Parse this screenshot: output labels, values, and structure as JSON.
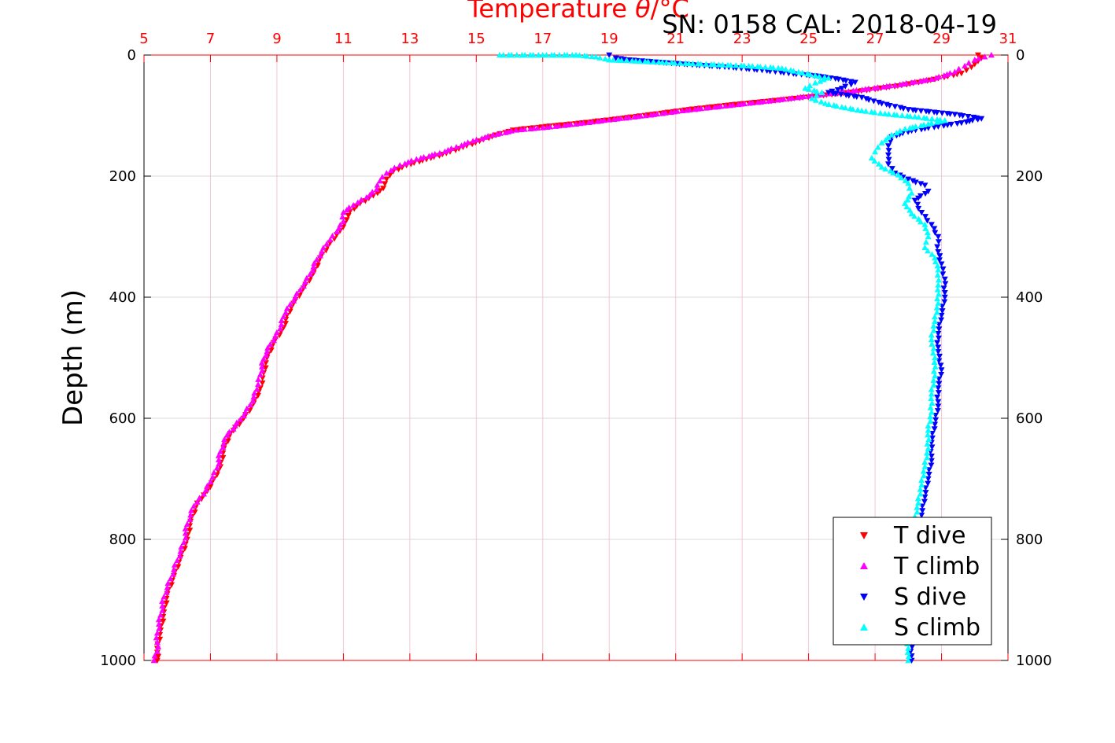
{
  "header": {
    "title_text": "Temperature",
    "title_symbol": "θ",
    "title_unit": "/°C",
    "info": "SN: 0158  CAL: 2018-04-19"
  },
  "colors": {
    "t_dive": "#ff0000",
    "t_climb": "#ff00ff",
    "s_dive": "#0000ff",
    "s_climb": "#00ffff",
    "temp_axis": "#ff0000",
    "grid": "#d9d9d9",
    "temp_grid": "#f4c7d2"
  },
  "chart_data": {
    "type": "scatter",
    "title": "Temperature θ/°C",
    "ylabel": "Depth (m)",
    "xlabel": "",
    "x_top_ticks": [
      "5",
      "7",
      "9",
      "11",
      "13",
      "15",
      "17",
      "19",
      "21",
      "23",
      "25",
      "27",
      "29",
      "31"
    ],
    "x_top_range": [
      5,
      31
    ],
    "y_ticks": [
      "0",
      "200",
      "400",
      "600",
      "800",
      "1000"
    ],
    "y_range": [
      0,
      1000
    ],
    "y_reversed": true,
    "grid": true,
    "legend_position": "bottom-right",
    "series": [
      {
        "name": "T dive",
        "marker": "triangle-down",
        "color": "#ff0000",
        "points": [
          [
            30.1,
            0
          ],
          [
            30.2,
            5
          ],
          [
            30.1,
            10
          ],
          [
            29.9,
            20
          ],
          [
            29.6,
            30
          ],
          [
            28.8,
            40
          ],
          [
            27.8,
            50
          ],
          [
            26.5,
            60
          ],
          [
            25.2,
            68
          ],
          [
            24.0,
            75
          ],
          [
            22.7,
            82
          ],
          [
            21.4,
            90
          ],
          [
            20.3,
            98
          ],
          [
            19.3,
            105
          ],
          [
            18.2,
            112
          ],
          [
            17.1,
            118
          ],
          [
            16.1,
            124
          ],
          [
            15.6,
            132
          ],
          [
            15.1,
            142
          ],
          [
            14.6,
            152
          ],
          [
            14.1,
            162
          ],
          [
            13.5,
            172
          ],
          [
            12.9,
            182
          ],
          [
            12.5,
            192
          ],
          [
            12.3,
            205
          ],
          [
            12.2,
            220
          ],
          [
            11.9,
            232
          ],
          [
            11.5,
            245
          ],
          [
            11.2,
            258
          ],
          [
            11.1,
            272
          ],
          [
            10.9,
            290
          ],
          [
            10.6,
            310
          ],
          [
            10.3,
            335
          ],
          [
            10.1,
            360
          ],
          [
            9.8,
            385
          ],
          [
            9.5,
            410
          ],
          [
            9.3,
            430
          ],
          [
            9.2,
            450
          ],
          [
            8.9,
            475
          ],
          [
            8.7,
            500
          ],
          [
            8.6,
            525
          ],
          [
            8.5,
            550
          ],
          [
            8.3,
            575
          ],
          [
            8.0,
            600
          ],
          [
            7.6,
            625
          ],
          [
            7.4,
            650
          ],
          [
            7.3,
            680
          ],
          [
            7.1,
            700
          ],
          [
            6.9,
            720
          ],
          [
            6.6,
            740
          ],
          [
            6.4,
            770
          ],
          [
            6.3,
            800
          ],
          [
            6.1,
            830
          ],
          [
            5.9,
            860
          ],
          [
            5.7,
            890
          ],
          [
            5.6,
            920
          ],
          [
            5.5,
            950
          ],
          [
            5.4,
            980
          ],
          [
            5.4,
            1000
          ]
        ]
      },
      {
        "name": "T climb",
        "marker": "triangle-up",
        "color": "#ff00ff",
        "points": [
          [
            30.5,
            0
          ],
          [
            30.3,
            3
          ],
          [
            30.0,
            8
          ],
          [
            29.7,
            18
          ],
          [
            29.4,
            28
          ],
          [
            28.7,
            40
          ],
          [
            27.6,
            50
          ],
          [
            26.2,
            60
          ],
          [
            25.0,
            68
          ],
          [
            23.8,
            76
          ],
          [
            22.5,
            84
          ],
          [
            21.2,
            92
          ],
          [
            20.1,
            100
          ],
          [
            19.0,
            107
          ],
          [
            18.0,
            114
          ],
          [
            17.0,
            120
          ],
          [
            16.2,
            124
          ],
          [
            15.5,
            132
          ],
          [
            14.9,
            142
          ],
          [
            14.4,
            152
          ],
          [
            13.9,
            162
          ],
          [
            13.2,
            172
          ],
          [
            12.7,
            182
          ],
          [
            12.3,
            195
          ],
          [
            12.1,
            208
          ],
          [
            12.0,
            222
          ],
          [
            11.7,
            235
          ],
          [
            11.3,
            248
          ],
          [
            11.0,
            260
          ],
          [
            11.0,
            275
          ],
          [
            10.8,
            292
          ],
          [
            10.5,
            312
          ],
          [
            10.2,
            338
          ],
          [
            10.0,
            362
          ],
          [
            9.7,
            388
          ],
          [
            9.4,
            412
          ],
          [
            9.2,
            432
          ],
          [
            9.1,
            452
          ],
          [
            8.8,
            478
          ],
          [
            8.6,
            502
          ],
          [
            8.5,
            528
          ],
          [
            8.4,
            552
          ],
          [
            8.2,
            578
          ],
          [
            7.9,
            602
          ],
          [
            7.5,
            628
          ],
          [
            7.3,
            655
          ],
          [
            7.2,
            682
          ],
          [
            7.0,
            705
          ],
          [
            6.8,
            725
          ],
          [
            6.5,
            745
          ],
          [
            6.3,
            775
          ],
          [
            6.2,
            805
          ],
          [
            6.0,
            835
          ],
          [
            5.8,
            865
          ],
          [
            5.6,
            895
          ],
          [
            5.5,
            925
          ],
          [
            5.4,
            955
          ],
          [
            5.4,
            985
          ],
          [
            5.3,
            1000
          ]
        ]
      },
      {
        "name": "S dive",
        "marker": "triangle-down",
        "color": "#0000ff",
        "points": [
          [
            19.0,
            0
          ],
          [
            19.2,
            5
          ],
          [
            19.6,
            8
          ],
          [
            20.5,
            12
          ],
          [
            21.5,
            16
          ],
          [
            22.6,
            20
          ],
          [
            23.6,
            25
          ],
          [
            24.4,
            30
          ],
          [
            25.3,
            35
          ],
          [
            25.9,
            40
          ],
          [
            26.4,
            45
          ],
          [
            26.0,
            55
          ],
          [
            25.6,
            62
          ],
          [
            26.6,
            70
          ],
          [
            27.2,
            80
          ],
          [
            28.0,
            90
          ],
          [
            29.4,
            98
          ],
          [
            30.2,
            105
          ],
          [
            29.6,
            112
          ],
          [
            28.9,
            118
          ],
          [
            28.1,
            125
          ],
          [
            27.5,
            135
          ],
          [
            27.4,
            150
          ],
          [
            27.4,
            165
          ],
          [
            27.4,
            180
          ],
          [
            27.6,
            195
          ],
          [
            28.0,
            205
          ],
          [
            28.5,
            215
          ],
          [
            28.6,
            225
          ],
          [
            28.2,
            240
          ],
          [
            28.4,
            260
          ],
          [
            28.7,
            280
          ],
          [
            28.9,
            300
          ],
          [
            28.9,
            325
          ],
          [
            29.0,
            345
          ],
          [
            29.1,
            370
          ],
          [
            29.1,
            400
          ],
          [
            29.0,
            430
          ],
          [
            28.9,
            460
          ],
          [
            28.9,
            490
          ],
          [
            29.0,
            520
          ],
          [
            28.9,
            550
          ],
          [
            28.9,
            580
          ],
          [
            28.8,
            610
          ],
          [
            28.7,
            640
          ],
          [
            28.7,
            670
          ],
          [
            28.6,
            700
          ],
          [
            28.5,
            730
          ],
          [
            28.4,
            760
          ],
          [
            28.3,
            790
          ],
          [
            28.2,
            820
          ],
          [
            28.2,
            850
          ],
          [
            28.1,
            880
          ],
          [
            28.1,
            910
          ],
          [
            28.1,
            940
          ],
          [
            28.1,
            970
          ],
          [
            28.1,
            1000
          ]
        ]
      },
      {
        "name": "S climb",
        "marker": "triangle-up",
        "color": "#00ffff",
        "points": [
          [
            15.7,
            0
          ],
          [
            17.0,
            0
          ],
          [
            18.0,
            0
          ],
          [
            18.6,
            3
          ],
          [
            19.0,
            8
          ],
          [
            19.8,
            10
          ],
          [
            20.6,
            12
          ],
          [
            21.4,
            14
          ],
          [
            22.3,
            16
          ],
          [
            23.2,
            18
          ],
          [
            24.2,
            22
          ],
          [
            24.7,
            28
          ],
          [
            25.2,
            34
          ],
          [
            25.6,
            38
          ],
          [
            25.2,
            46
          ],
          [
            24.9,
            55
          ],
          [
            25.4,
            62
          ],
          [
            25.1,
            72
          ],
          [
            25.5,
            80
          ],
          [
            26.0,
            86
          ],
          [
            26.6,
            92
          ],
          [
            27.3,
            97
          ],
          [
            28.2,
            102
          ],
          [
            29.1,
            108
          ],
          [
            28.6,
            114
          ],
          [
            27.9,
            122
          ],
          [
            27.5,
            132
          ],
          [
            27.2,
            145
          ],
          [
            27.0,
            160
          ],
          [
            26.9,
            170
          ],
          [
            27.2,
            185
          ],
          [
            27.7,
            198
          ],
          [
            28.0,
            212
          ],
          [
            28.1,
            228
          ],
          [
            27.9,
            245
          ],
          [
            28.1,
            262
          ],
          [
            28.5,
            280
          ],
          [
            28.6,
            300
          ],
          [
            28.5,
            318
          ],
          [
            28.8,
            335
          ],
          [
            28.9,
            355
          ],
          [
            28.9,
            380
          ],
          [
            28.9,
            410
          ],
          [
            28.8,
            440
          ],
          [
            28.7,
            470
          ],
          [
            28.8,
            500
          ],
          [
            28.8,
            530
          ],
          [
            28.7,
            560
          ],
          [
            28.7,
            590
          ],
          [
            28.6,
            620
          ],
          [
            28.6,
            650
          ],
          [
            28.5,
            680
          ],
          [
            28.4,
            710
          ],
          [
            28.3,
            740
          ],
          [
            28.2,
            770
          ],
          [
            28.1,
            800
          ],
          [
            28.1,
            830
          ],
          [
            28.1,
            860
          ],
          [
            28.0,
            890
          ],
          [
            28.0,
            920
          ],
          [
            28.0,
            950
          ],
          [
            28.0,
            980
          ],
          [
            28.0,
            1000
          ]
        ]
      }
    ]
  }
}
